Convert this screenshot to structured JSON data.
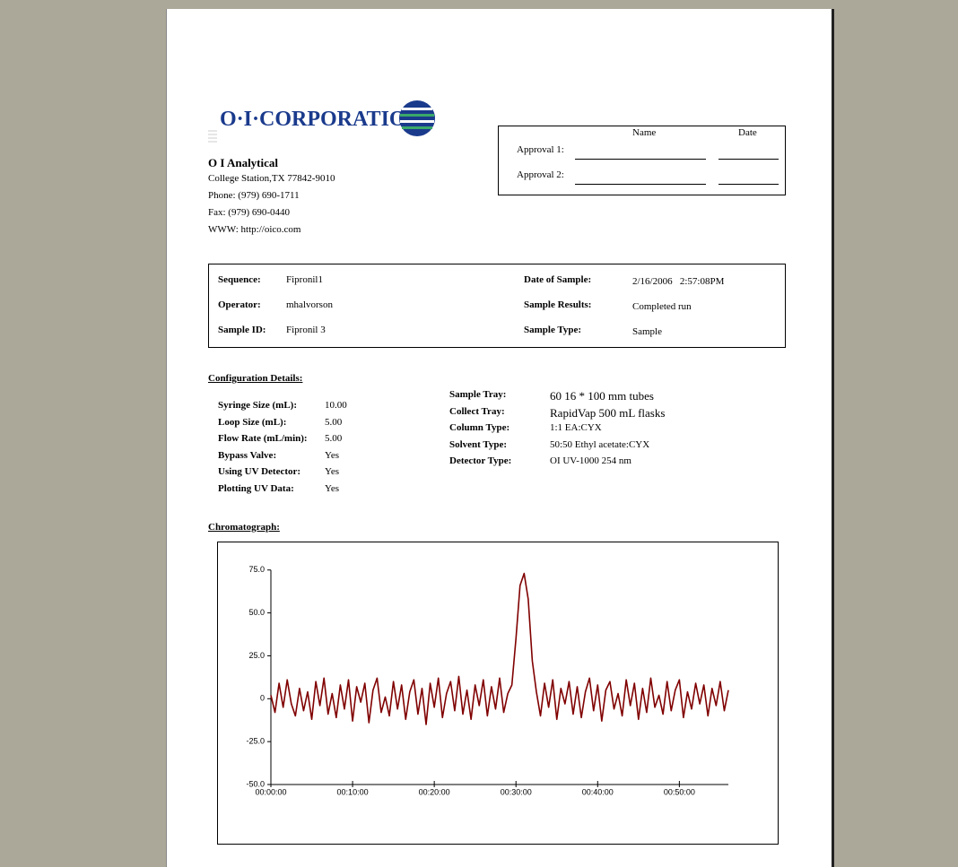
{
  "header": {
    "logo": "O·I·CORPORATION",
    "company": "O I Analytical",
    "address": "College Station,TX 77842-9010",
    "phone": "Phone: (979) 690-1711",
    "fax": "Fax: (979) 690-0440",
    "web": "WWW: http://oico.com"
  },
  "approval": {
    "columns": [
      "Name",
      "Date"
    ],
    "rows": [
      "Approval 1:",
      "Approval 2:"
    ]
  },
  "sample_info": {
    "left": [
      [
        "Sequence:",
        "Fipronil1"
      ],
      [
        "Operator:",
        "mhalvorson"
      ],
      [
        "Sample ID:",
        "Fipronil 3"
      ]
    ],
    "right": [
      [
        "Date of Sample:",
        "2/16/2006   2:57:08PM"
      ],
      [
        "Sample Results:",
        "Completed run"
      ],
      [
        "Sample Type:",
        "Sample"
      ]
    ]
  },
  "configuration": {
    "title": "Configuration Details:",
    "left": [
      [
        "Syringe Size (mL):",
        "10.00"
      ],
      [
        "Loop Size (mL):",
        "5.00"
      ],
      [
        "Flow Rate (mL/min):",
        "5.00"
      ],
      [
        "Bypass Valve:",
        "Yes"
      ],
      [
        "Using UV Detector:",
        "Yes"
      ],
      [
        "Plotting UV Data:",
        "Yes"
      ]
    ],
    "right": [
      [
        "Sample Tray:",
        "60 16 * 100 mm tubes"
      ],
      [
        "Collect Tray:",
        "RapidVap 500 mL flasks"
      ],
      [
        "Column Type:",
        "1:1 EA:CYX"
      ],
      [
        "Solvent Type:",
        "50:50 Ethyl acetate:CYX"
      ],
      [
        "Detector Type:",
        "OI UV-1000 254 nm"
      ]
    ]
  },
  "chart_title": "Chromatograph:",
  "chart_data": {
    "type": "line",
    "color": "#800000",
    "x": [
      0,
      0.5,
      1,
      1.5,
      2,
      2.5,
      3,
      3.5,
      4,
      4.5,
      5,
      5.5,
      6,
      6.5,
      7,
      7.5,
      8,
      8.5,
      9,
      9.5,
      10,
      10.5,
      11,
      11.5,
      12,
      12.5,
      13,
      13.5,
      14,
      14.5,
      15,
      15.5,
      16,
      16.5,
      17,
      17.5,
      18,
      18.5,
      19,
      19.5,
      20,
      20.5,
      21,
      21.5,
      22,
      22.5,
      23,
      23.5,
      24,
      24.5,
      25,
      25.5,
      26,
      26.5,
      27,
      27.5,
      28,
      28.5,
      29,
      29.5,
      30,
      30.5,
      31,
      31.5,
      32,
      32.5,
      33,
      33.5,
      34,
      34.5,
      35,
      35.5,
      36,
      36.5,
      37,
      37.5,
      38,
      38.5,
      39,
      39.5,
      40,
      40.5,
      41,
      41.5,
      42,
      42.5,
      43,
      43.5,
      44,
      44.5,
      45,
      45.5,
      46,
      46.5,
      47,
      47.5,
      48,
      48.5,
      49,
      49.5,
      50,
      50.5,
      51,
      51.5,
      52,
      52.5,
      53,
      53.5,
      54,
      54.5,
      55,
      55.5,
      56
    ],
    "values": [
      2,
      -8,
      9,
      -5,
      11,
      -3,
      -10,
      6,
      -7,
      4,
      -12,
      10,
      -4,
      12,
      -9,
      3,
      -11,
      8,
      -6,
      11,
      -13,
      7,
      -2,
      9,
      -14,
      5,
      12,
      -8,
      1,
      -10,
      10,
      -6,
      8,
      -12,
      4,
      11,
      -9,
      6,
      -15,
      9,
      -5,
      12,
      -11,
      3,
      10,
      -7,
      13,
      -9,
      5,
      -12,
      8,
      -4,
      11,
      -10,
      7,
      -6,
      12,
      -8,
      3,
      8,
      35,
      66,
      73,
      58,
      22,
      4,
      -10,
      9,
      -5,
      11,
      -12,
      6,
      -3,
      10,
      -9,
      7,
      -11,
      4,
      12,
      -7,
      8,
      -13,
      5,
      10,
      -6,
      3,
      -10,
      11,
      -4,
      9,
      -12,
      6,
      -8,
      12,
      -5,
      2,
      -9,
      10,
      -7,
      5,
      11,
      -11,
      4,
      -6,
      9,
      -3,
      8,
      -10,
      6,
      -4,
      10,
      -7,
      5
    ],
    "xlim": [
      0,
      56
    ],
    "xticks": [
      {
        "value": 0,
        "label": "00:00:00"
      },
      {
        "value": 10,
        "label": "00:10:00"
      },
      {
        "value": 20,
        "label": "00:20:00"
      },
      {
        "value": 30,
        "label": "00:30:00"
      },
      {
        "value": 40,
        "label": "00:40:00"
      },
      {
        "value": 50,
        "label": "00:50:00"
      }
    ],
    "ylim": [
      -50,
      78
    ],
    "yticks": [
      {
        "value": -50,
        "label": "-50.0"
      },
      {
        "value": -25,
        "label": "-25.0"
      },
      0,
      {
        "value": 25,
        "label": "25.0"
      },
      {
        "value": 50,
        "label": "50.0"
      },
      {
        "value": 75,
        "label": "75.0"
      }
    ]
  }
}
